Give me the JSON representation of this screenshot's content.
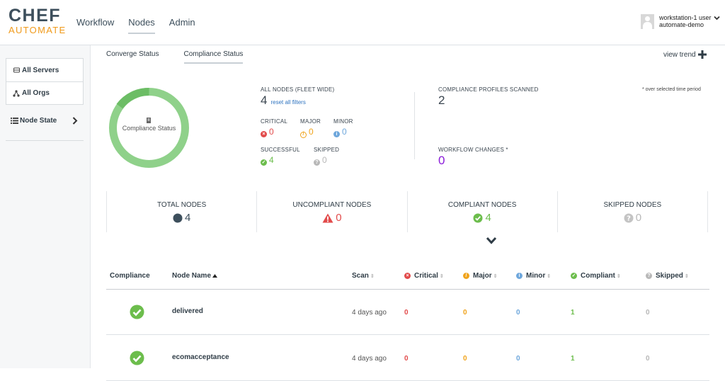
{
  "brand": {
    "line1": "CHEF",
    "line2": "AUTOMATE"
  },
  "nav": {
    "workflow": "Workflow",
    "nodes": "Nodes",
    "admin": "Admin"
  },
  "user": {
    "name": "workstation-1 user",
    "org": "automate-demo",
    "chevron": "chevron-down-icon"
  },
  "sidebar": {
    "all_servers": "All Servers",
    "all_orgs": "All Orgs",
    "node_state": "Node State"
  },
  "tabs": {
    "converge": "Converge Status",
    "compliance": "Compliance Status"
  },
  "view_trend": "view trend",
  "donut": {
    "label": "Compliance Status",
    "passed_fraction": 1.0,
    "color": "#8fd18a",
    "color_dark": "#6cbd65"
  },
  "all_nodes": {
    "label": "ALL NODES (FLEET WIDE)",
    "count": "4",
    "reset_link": "reset all filters"
  },
  "severity": {
    "critical": {
      "label": "CRITICAL",
      "value": "0"
    },
    "major": {
      "label": "MAJOR",
      "value": "0"
    },
    "minor": {
      "label": "MINOR",
      "value": "0"
    },
    "successful": {
      "label": "SUCCESSFUL",
      "value": "4"
    },
    "skipped": {
      "label": "SKIPPED",
      "value": "0"
    }
  },
  "profiles": {
    "label": "COMPLIANCE PROFILES SCANNED",
    "value": "2"
  },
  "workflow_changes": {
    "label": "WORKFLOW CHANGES *",
    "value": "0"
  },
  "time_note": "* over selected time period",
  "summary": {
    "total": {
      "label": "TOTAL NODES",
      "value": "4"
    },
    "uncompliant": {
      "label": "UNCOMPLIANT NODES",
      "value": "0"
    },
    "compliant": {
      "label": "COMPLIANT NODES",
      "value": "4"
    },
    "skipped": {
      "label": "SKIPPED NODES",
      "value": "0"
    }
  },
  "table": {
    "headers": {
      "compliance": "Compliance",
      "node_name": "Node Name",
      "scan": "Scan",
      "critical": "Critical",
      "major": "Major",
      "minor": "Minor",
      "compliant": "Compliant",
      "skipped": "Skipped"
    },
    "rows": [
      {
        "name": "delivered",
        "scan": "4 days ago",
        "critical": "0",
        "major": "0",
        "minor": "0",
        "compliant": "1",
        "skipped": "0"
      },
      {
        "name": "ecomacceptance",
        "scan": "4 days ago",
        "critical": "0",
        "major": "0",
        "minor": "0",
        "compliant": "1",
        "skipped": "0"
      }
    ]
  },
  "colors": {
    "critical": "#e24b4b",
    "major": "#f0a31b",
    "minor": "#6ea7dc",
    "compliant": "#6cbd4c",
    "skipped": "#b8b8b8",
    "workflow": "#8a1bd9",
    "total": "#3d4f5c"
  }
}
